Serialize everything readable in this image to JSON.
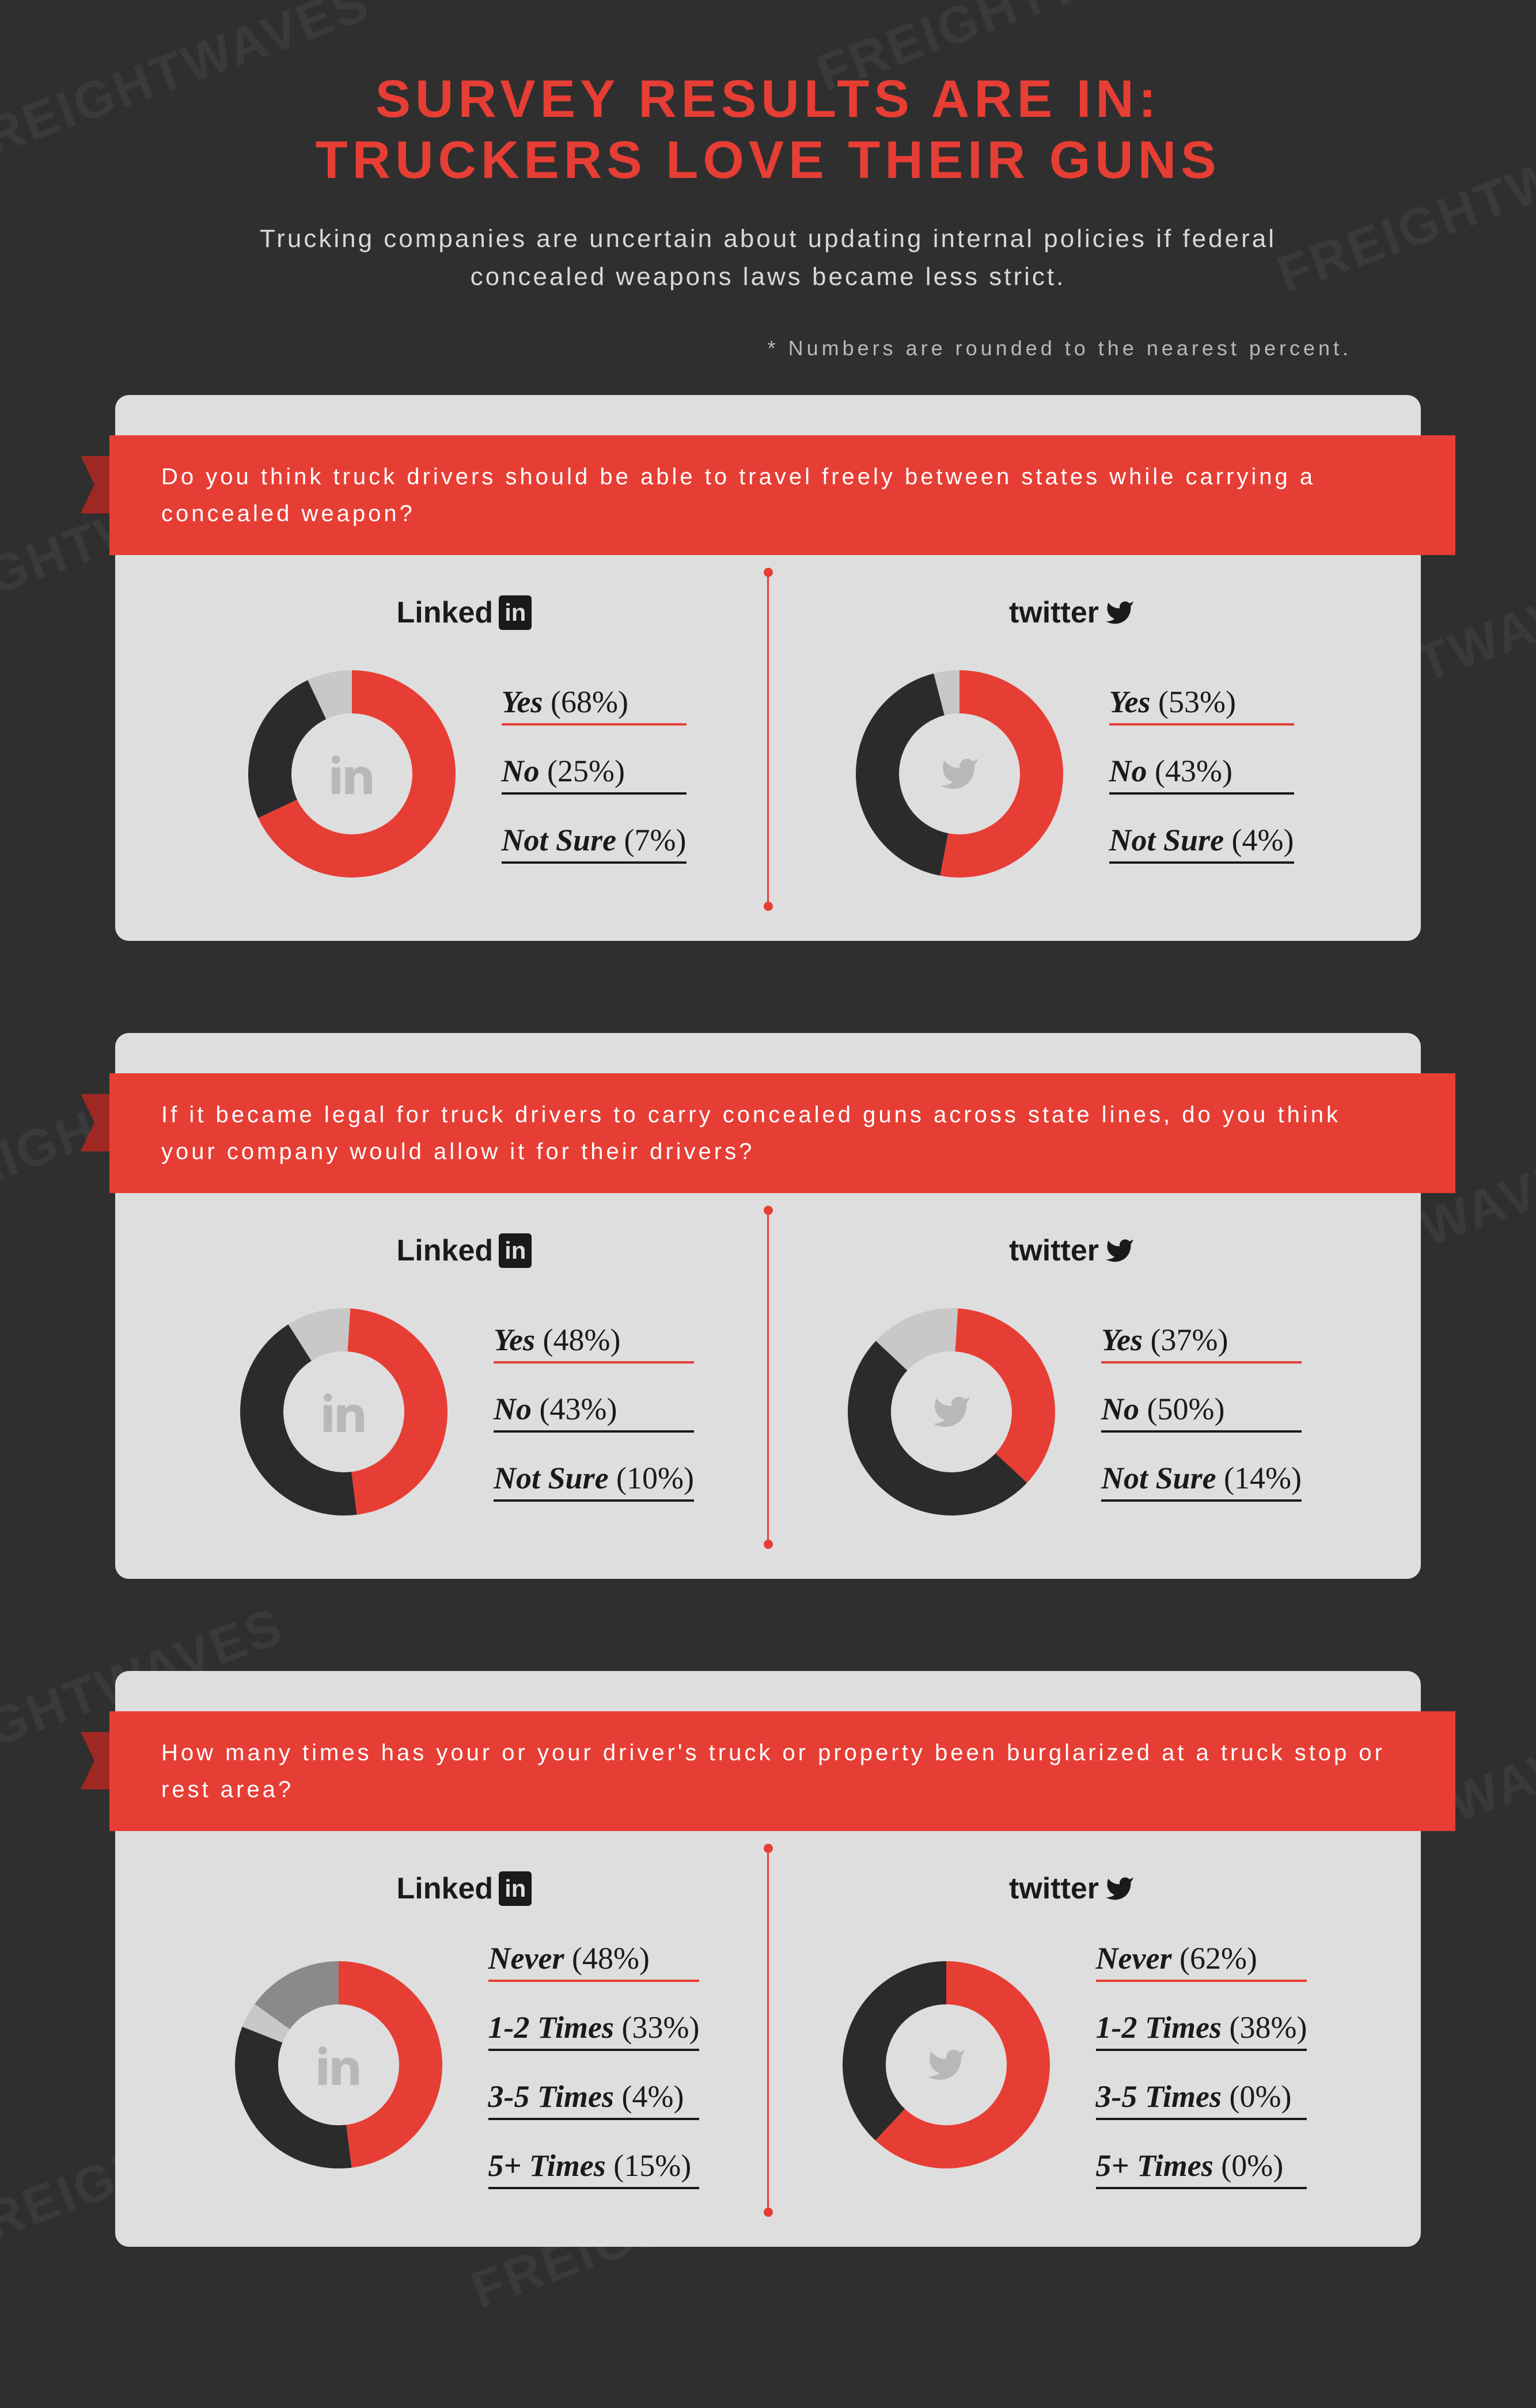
{
  "watermark_text": "FREIGHTWAVES",
  "title_line1": "SURVEY RESULTS ARE IN:",
  "title_line2": "TRUCKERS LOVE THEIR GUNS",
  "subtitle": "Trucking companies are uncertain about updating internal policies if federal concealed weapons laws became less strict.",
  "footnote": "* Numbers are rounded to the nearest percent.",
  "colors": {
    "accent": "#e63e35",
    "dark": "#2b2b2b",
    "light": "#c8c8c8",
    "bg": "#dedede"
  },
  "platforms": {
    "linkedin": "Linked",
    "linkedin_badge": "in",
    "twitter": "twitter"
  },
  "questions": [
    {
      "text": "Do you think truck drivers should be able to travel freely between states while carrying a concealed weapon?",
      "linkedin": {
        "items": [
          {
            "label": "Yes",
            "value": 68,
            "color": "#e63e35",
            "primary": true
          },
          {
            "label": "No",
            "value": 25,
            "color": "#2b2b2b"
          },
          {
            "label": "Not Sure",
            "value": 7,
            "color": "#c8c8c8"
          }
        ]
      },
      "twitter": {
        "items": [
          {
            "label": "Yes",
            "value": 53,
            "color": "#e63e35",
            "primary": true
          },
          {
            "label": "No",
            "value": 43,
            "color": "#2b2b2b"
          },
          {
            "label": "Not Sure",
            "value": 4,
            "color": "#c8c8c8"
          }
        ]
      }
    },
    {
      "text": "If it became legal for truck drivers to carry concealed guns across state lines, do you think your company would allow it for their drivers?",
      "linkedin": {
        "items": [
          {
            "label": "Yes",
            "value": 48,
            "color": "#e63e35",
            "primary": true
          },
          {
            "label": "No",
            "value": 43,
            "color": "#2b2b2b"
          },
          {
            "label": "Not Sure",
            "value": 10,
            "color": "#c8c8c8"
          }
        ]
      },
      "twitter": {
        "items": [
          {
            "label": "Yes",
            "value": 37,
            "color": "#e63e35",
            "primary": true
          },
          {
            "label": "No",
            "value": 50,
            "color": "#2b2b2b"
          },
          {
            "label": "Not Sure",
            "value": 14,
            "color": "#c8c8c8"
          }
        ]
      }
    },
    {
      "text": "How many times has your or your driver's truck or property been burglarized at a truck stop or rest area?",
      "linkedin": {
        "items": [
          {
            "label": "Never",
            "value": 48,
            "color": "#e63e35",
            "primary": true
          },
          {
            "label": "1-2 Times",
            "value": 33,
            "color": "#2b2b2b"
          },
          {
            "label": "3-5 Times",
            "value": 4,
            "color": "#c8c8c8"
          },
          {
            "label": "5+ Times",
            "value": 15,
            "color": "#8a8a8a"
          }
        ]
      },
      "twitter": {
        "items": [
          {
            "label": "Never",
            "value": 62,
            "color": "#e63e35",
            "primary": true
          },
          {
            "label": "1-2 Times",
            "value": 38,
            "color": "#2b2b2b"
          },
          {
            "label": "3-5 Times",
            "value": 0,
            "color": "#c8c8c8"
          },
          {
            "label": "5+ Times",
            "value": 0,
            "color": "#8a8a8a"
          }
        ]
      }
    }
  ]
}
